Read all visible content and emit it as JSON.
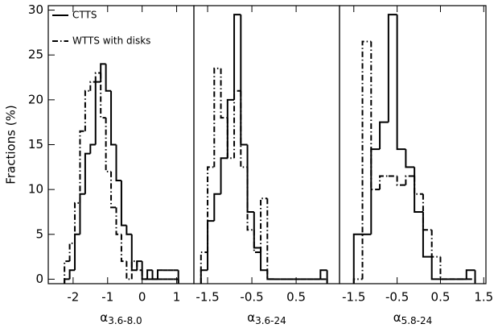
{
  "chart_data": [
    {
      "type": "histogram",
      "ylabel": "Fractions (%)",
      "xlabel": {
        "symbol": "α",
        "subscript": "3.6-8.0"
      },
      "xlim": [
        -2.72,
        1.5
      ],
      "ylim": [
        -0.5,
        30.5
      ],
      "xticks": [
        -2,
        -1,
        0,
        1
      ],
      "yticks": [
        0,
        5,
        10,
        15,
        20,
        25,
        30
      ],
      "bins": [
        -2.25,
        -2.1,
        -1.95,
        -1.8,
        -1.65,
        -1.5,
        -1.35,
        -1.2,
        -1.05,
        -0.9,
        -0.75,
        -0.6,
        -0.45,
        -0.3,
        -0.15,
        0.0,
        0.15,
        0.3,
        0.45,
        0.6,
        0.75,
        0.9,
        1.05
      ],
      "legend": "upper left",
      "series": [
        {
          "name": "CTTS",
          "color": "#000000",
          "style": "solid",
          "values": [
            0,
            1,
            5,
            9.5,
            14,
            15,
            22,
            24,
            21,
            15,
            11,
            6,
            5,
            1,
            2,
            0,
            1,
            0,
            1,
            1,
            1,
            1
          ]
        },
        {
          "name": "WTTS with disks",
          "color": "#000000",
          "style": "dashdot",
          "values": [
            2,
            4,
            8.5,
            16.5,
            21,
            22,
            23,
            18,
            12,
            8,
            5,
            2,
            0,
            2,
            1,
            0,
            0,
            0,
            0,
            0,
            0,
            0
          ]
        }
      ]
    },
    {
      "type": "histogram",
      "xlabel": {
        "symbol": "α",
        "subscript": "3.6-24"
      },
      "xlim": [
        -1.81,
        1.48
      ],
      "ylim": [
        -0.5,
        30.5
      ],
      "xticks": [
        -1.5,
        -0.5,
        0.5
      ],
      "bins": [
        -1.65,
        -1.5,
        -1.35,
        -1.2,
        -1.05,
        -0.9,
        -0.75,
        -0.6,
        -0.45,
        -0.3,
        -0.15,
        0.0,
        0.15,
        0.3,
        0.45,
        0.6,
        0.75,
        0.9,
        1.05,
        1.2
      ],
      "series": [
        {
          "color": "#000000",
          "style": "solid",
          "values": [
            1,
            6.5,
            9.5,
            13.5,
            20,
            29.5,
            15,
            7.5,
            3.5,
            1,
            0,
            0,
            0,
            0,
            0,
            0,
            0,
            0,
            1
          ]
        },
        {
          "color": "#000000",
          "style": "dashdot",
          "values": [
            3,
            12.5,
            23.5,
            18,
            13.5,
            21,
            12.5,
            5.5,
            3,
            9,
            0,
            0,
            0,
            0,
            0,
            0,
            0,
            0,
            0
          ]
        }
      ]
    },
    {
      "type": "histogram",
      "xlabel": {
        "symbol": "α",
        "subscript": "5.8-24"
      },
      "xlim": [
        -1.83,
        1.55
      ],
      "ylim": [
        -0.5,
        30.5
      ],
      "xticks": [
        -1.5,
        -0.5,
        0.5,
        1.5
      ],
      "bins": [
        -1.5,
        -1.3,
        -1.1,
        -0.9,
        -0.7,
        -0.5,
        -0.3,
        -0.1,
        0.1,
        0.3,
        0.5,
        0.7,
        0.9,
        1.1,
        1.3
      ],
      "series": [
        {
          "color": "#000000",
          "style": "solid",
          "values": [
            5,
            5,
            14.5,
            17.5,
            29.5,
            14.5,
            12.5,
            7.5,
            2.5,
            0,
            0,
            0,
            0,
            1
          ]
        },
        {
          "color": "#000000",
          "style": "dashdot",
          "values": [
            0,
            26.5,
            10,
            11.5,
            11.5,
            10.5,
            11.5,
            9.5,
            5.5,
            2.5,
            0,
            0,
            0,
            0
          ]
        }
      ]
    }
  ]
}
